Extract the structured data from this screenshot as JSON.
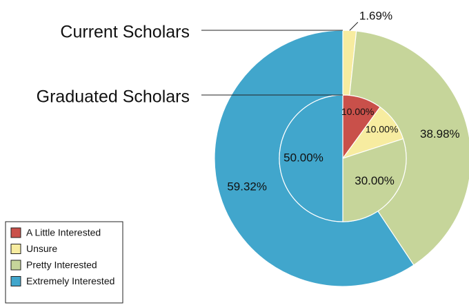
{
  "chart_data": {
    "type": "nested-donut",
    "categories": [
      "A Little Interested",
      "Unsure",
      "Pretty Interested",
      "Extremely Interested"
    ],
    "colors": [
      "#c9504a",
      "#f7eca0",
      "#c6d59a",
      "#41a6cc"
    ],
    "series": [
      {
        "name": "Current Scholars",
        "values": [
          null,
          1.69,
          38.98,
          59.32
        ],
        "value_labels": [
          null,
          "1.69%",
          "38.98%",
          "59.32%"
        ]
      },
      {
        "name": "Graduated Scholars",
        "values": [
          10,
          10,
          30,
          50
        ],
        "value_labels": [
          "10.00%",
          "10.00%",
          "30.00%",
          "50.00%"
        ]
      }
    ],
    "legend": "bottom-left"
  }
}
